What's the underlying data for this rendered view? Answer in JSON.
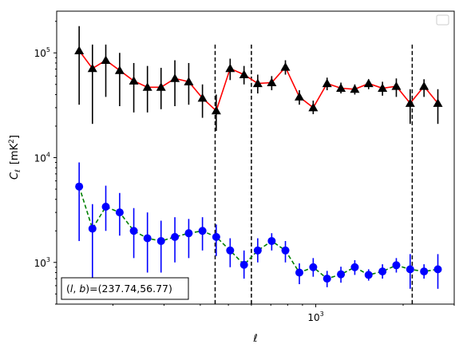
{
  "chart_data": {
    "type": "scatter",
    "xlabel": "ℓ",
    "ylabel_main": "C",
    "ylabel_sub": "ℓ",
    "ylabel_unit": "[mK",
    "ylabel_unit_sup": "2",
    "ylabel_unit_close": "]",
    "x_scale": "log",
    "y_scale": "log",
    "xlim": [
      128,
      3000
    ],
    "ylim": [
      400,
      250000
    ],
    "x_tick_labels": [
      {
        "value": 1000,
        "base": "10",
        "exp": "3"
      }
    ],
    "y_tick_labels": [
      {
        "value": 1000,
        "base": "10",
        "exp": "3"
      },
      {
        "value": 10000,
        "base": "10",
        "exp": "4"
      },
      {
        "value": 100000,
        "base": "10",
        "exp": "5"
      }
    ],
    "vlines": [
      450,
      600,
      2150
    ],
    "vline_top": 120000,
    "annotation": {
      "prefix": "(",
      "l": "l",
      "comma": ", ",
      "b": "b",
      "suffix": ")=(237.74,56.77)"
    },
    "legend_placement": "top-right",
    "legend_entries": [],
    "series": [
      {
        "marker": "triangle",
        "line_color": "#ff0000",
        "line_style": "solid",
        "marker_color": "#000000",
        "errorbar_color": "#000000",
        "x": [
          153,
          170,
          189,
          211,
          236,
          263,
          293,
          327,
          365,
          407,
          454,
          507,
          566,
          631,
          705,
          786,
          878,
          980,
          1094,
          1221,
          1363,
          1521,
          1698,
          1895,
          2115,
          2361,
          2635
        ],
        "y": [
          105000,
          71000,
          85000,
          68000,
          54000,
          47000,
          47000,
          57000,
          53000,
          37000,
          28000,
          71000,
          62000,
          51000,
          52000,
          73000,
          38000,
          30000,
          51000,
          46000,
          45000,
          51000,
          46000,
          48000,
          33000,
          48000,
          33000
        ],
        "yerr_low": [
          32000,
          21000,
          38000,
          31000,
          27000,
          27000,
          29000,
          31000,
          32000,
          24000,
          18000,
          55000,
          50000,
          41000,
          44000,
          62000,
          32000,
          26000,
          44000,
          41000,
          40000,
          45000,
          39000,
          38000,
          21000,
          38000,
          21000
        ],
        "yerr_high": [
          180000,
          120000,
          120000,
          100000,
          80000,
          75000,
          72000,
          85000,
          80000,
          50000,
          40000,
          88000,
          75000,
          62000,
          60000,
          85000,
          44000,
          35000,
          58000,
          52000,
          50000,
          56000,
          53000,
          57000,
          45000,
          56000,
          45000
        ]
      },
      {
        "marker": "circle",
        "line_color": "#008000",
        "line_style": "dashed",
        "marker_color": "#0000ff",
        "errorbar_color": "#0000ff",
        "x": [
          153,
          170,
          189,
          211,
          236,
          263,
          293,
          327,
          365,
          407,
          454,
          507,
          566,
          631,
          705,
          786,
          878,
          980,
          1094,
          1221,
          1363,
          1521,
          1698,
          1895,
          2115,
          2361,
          2635
        ],
        "y": [
          5300,
          2100,
          3400,
          3000,
          2000,
          1700,
          1600,
          1750,
          1900,
          2000,
          1750,
          1300,
          950,
          1300,
          1600,
          1300,
          800,
          900,
          700,
          770,
          900,
          760,
          820,
          940,
          860,
          820,
          860
        ],
        "yerr_low": [
          1600,
          580,
          2000,
          1800,
          1100,
          800,
          800,
          1000,
          1100,
          1300,
          1150,
          900,
          700,
          1000,
          1300,
          1000,
          620,
          730,
          580,
          640,
          760,
          670,
          700,
          800,
          560,
          700,
          560
        ],
        "yerr_high": [
          9000,
          3600,
          5400,
          4600,
          3300,
          3000,
          2500,
          2700,
          2600,
          2700,
          2300,
          1700,
          1300,
          1700,
          1900,
          1600,
          980,
          1100,
          830,
          910,
          1050,
          860,
          960,
          1100,
          1200,
          960,
          1200
        ]
      }
    ]
  }
}
